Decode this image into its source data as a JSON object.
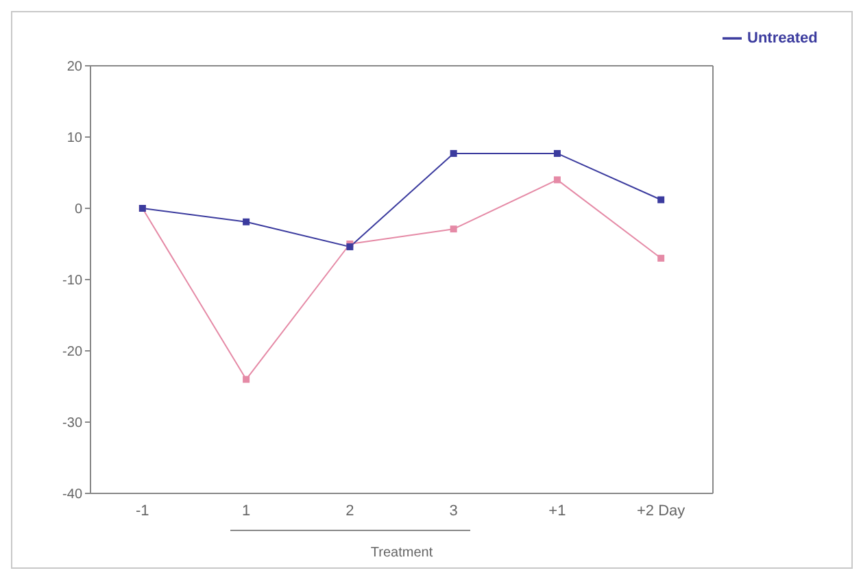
{
  "chart_data": {
    "type": "line",
    "xlabel": "Treatment",
    "categories": [
      "-1",
      "1",
      "2",
      "3",
      "+1",
      "+2 Day"
    ],
    "series": [
      {
        "name": "Untreated",
        "color": "#3b3b9e",
        "values": [
          0,
          -1.9,
          -5.4,
          7.7,
          7.7,
          1.2
        ]
      },
      {
        "color": "#e58aa6",
        "values": [
          0,
          -24,
          -5,
          -2.9,
          4,
          -7
        ]
      }
    ],
    "ylim": [
      -40,
      20
    ],
    "yticks": [
      -40,
      -30,
      -20,
      -10,
      0,
      10,
      20
    ],
    "legend": "top right",
    "marker": "square",
    "line_style": "solid"
  }
}
